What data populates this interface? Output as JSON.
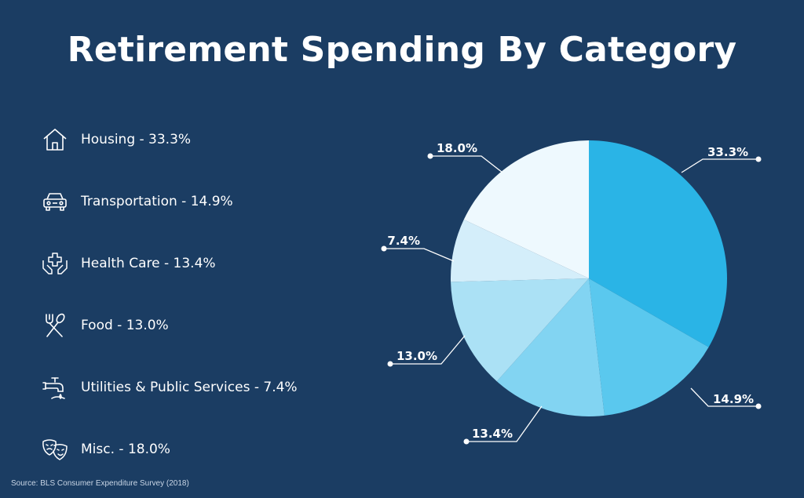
{
  "title": "Retirement Spending By Category",
  "source": "Source: BLS Consumer Expenditure Survey (2018)",
  "legend": [
    {
      "label": "Housing - 33.3%",
      "icon": "house-icon"
    },
    {
      "label": "Transportation - 14.9%",
      "icon": "car-icon"
    },
    {
      "label": "Health Care - 13.4%",
      "icon": "hands-medical-cross-icon"
    },
    {
      "label": "Food - 13.0%",
      "icon": "fork-spoon-icon"
    },
    {
      "label": "Utilities & Public Services - 7.4%",
      "icon": "water-faucet-icon"
    },
    {
      "label": "Misc. - 18.0%",
      "icon": "theater-masks-icon"
    }
  ],
  "chart_data": {
    "type": "pie",
    "title": "Retirement Spending By Category",
    "legend_position": "left",
    "categories": [
      "Housing",
      "Transportation",
      "Health Care",
      "Food",
      "Utilities & Public Services",
      "Misc."
    ],
    "values": [
      33.3,
      14.9,
      13.4,
      13.0,
      7.4,
      18.0
    ],
    "data_labels": [
      "33.3%",
      "14.9%",
      "13.4%",
      "13.0%",
      "7.4%",
      "18.0%"
    ],
    "colors": [
      "#2ab4e6",
      "#5ac8ee",
      "#82d4f2",
      "#abe1f5",
      "#d4eefa",
      "#eef9fe"
    ]
  }
}
